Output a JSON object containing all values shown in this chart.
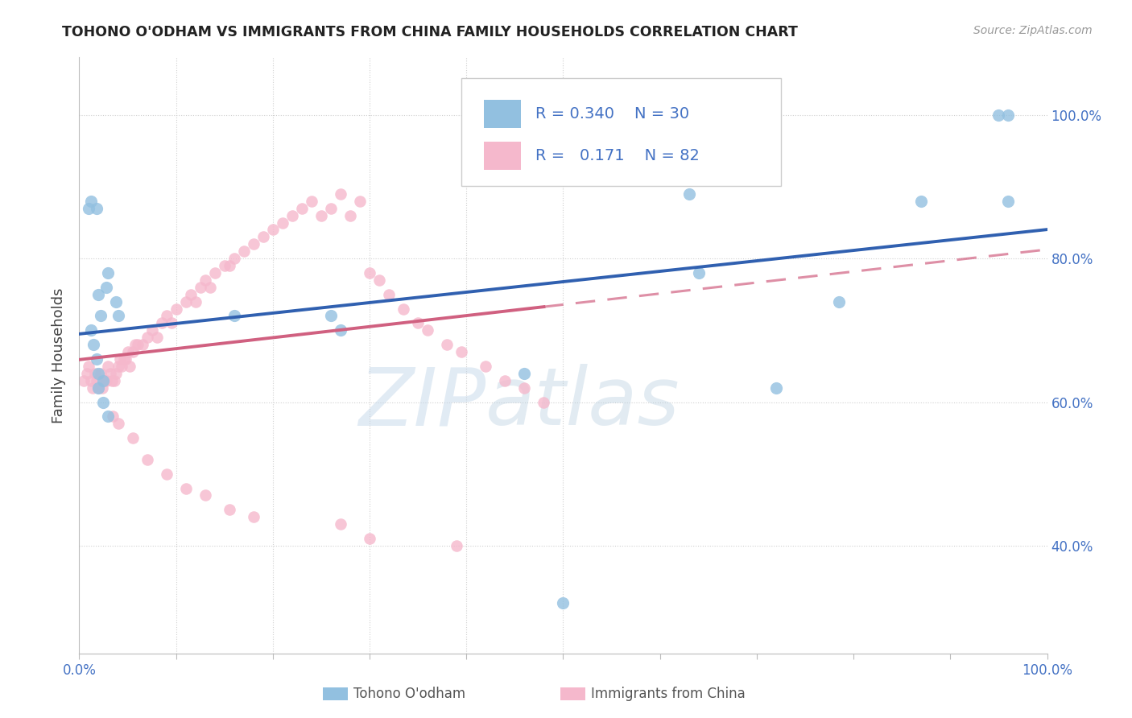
{
  "title": "TOHONO O'ODHAM VS IMMIGRANTS FROM CHINA FAMILY HOUSEHOLDS CORRELATION CHART",
  "source": "Source: ZipAtlas.com",
  "ylabel": "Family Households",
  "blue_color": "#92c0e0",
  "pink_color": "#f5b8cc",
  "blue_line_color": "#3060b0",
  "pink_line_color": "#d06080",
  "watermark_zip": "ZIP",
  "watermark_atlas": "atlas",
  "blue_r": "0.340",
  "blue_n": "30",
  "pink_r": "0.171",
  "pink_n": "82",
  "label_blue": "Tohono O'odham",
  "label_pink": "Immigrants from China",
  "legend_text_color": "#4472c4",
  "axis_label_color": "#4472c4",
  "title_color": "#222222",
  "source_color": "#999999",
  "grid_color": "#d0d0d0",
  "blue_scatter_x": [
    0.012,
    0.01,
    0.018,
    0.02,
    0.022,
    0.012,
    0.015,
    0.018,
    0.02,
    0.025,
    0.028,
    0.03,
    0.038,
    0.04,
    0.02,
    0.025,
    0.03,
    0.16,
    0.26,
    0.27,
    0.46,
    0.5,
    0.64,
    0.63,
    0.72,
    0.785,
    0.87,
    0.95,
    0.96,
    0.96
  ],
  "blue_scatter_y": [
    0.88,
    0.87,
    0.87,
    0.75,
    0.72,
    0.7,
    0.68,
    0.66,
    0.64,
    0.63,
    0.76,
    0.78,
    0.74,
    0.72,
    0.62,
    0.6,
    0.58,
    0.72,
    0.72,
    0.7,
    0.64,
    0.32,
    0.78,
    0.89,
    0.62,
    0.74,
    0.88,
    1.0,
    1.0,
    0.88
  ],
  "pink_scatter_x": [
    0.005,
    0.008,
    0.01,
    0.012,
    0.014,
    0.016,
    0.018,
    0.02,
    0.022,
    0.024,
    0.026,
    0.028,
    0.03,
    0.032,
    0.034,
    0.036,
    0.038,
    0.04,
    0.042,
    0.044,
    0.046,
    0.048,
    0.05,
    0.052,
    0.055,
    0.058,
    0.06,
    0.065,
    0.07,
    0.075,
    0.08,
    0.085,
    0.09,
    0.095,
    0.1,
    0.11,
    0.115,
    0.12,
    0.125,
    0.13,
    0.135,
    0.14,
    0.15,
    0.155,
    0.16,
    0.17,
    0.18,
    0.19,
    0.2,
    0.21,
    0.22,
    0.23,
    0.24,
    0.25,
    0.26,
    0.27,
    0.28,
    0.29,
    0.3,
    0.31,
    0.32,
    0.335,
    0.35,
    0.36,
    0.38,
    0.395,
    0.42,
    0.44,
    0.46,
    0.48,
    0.035,
    0.04,
    0.055,
    0.07,
    0.09,
    0.11,
    0.13,
    0.155,
    0.18,
    0.27,
    0.3,
    0.39
  ],
  "pink_scatter_y": [
    0.63,
    0.64,
    0.65,
    0.63,
    0.62,
    0.64,
    0.63,
    0.62,
    0.64,
    0.62,
    0.63,
    0.63,
    0.65,
    0.64,
    0.63,
    0.63,
    0.64,
    0.65,
    0.66,
    0.65,
    0.66,
    0.66,
    0.67,
    0.65,
    0.67,
    0.68,
    0.68,
    0.68,
    0.69,
    0.7,
    0.69,
    0.71,
    0.72,
    0.71,
    0.73,
    0.74,
    0.75,
    0.74,
    0.76,
    0.77,
    0.76,
    0.78,
    0.79,
    0.79,
    0.8,
    0.81,
    0.82,
    0.83,
    0.84,
    0.85,
    0.86,
    0.87,
    0.88,
    0.86,
    0.87,
    0.89,
    0.86,
    0.88,
    0.78,
    0.77,
    0.75,
    0.73,
    0.71,
    0.7,
    0.68,
    0.67,
    0.65,
    0.63,
    0.62,
    0.6,
    0.58,
    0.57,
    0.55,
    0.52,
    0.5,
    0.48,
    0.47,
    0.45,
    0.44,
    0.43,
    0.41,
    0.4
  ]
}
